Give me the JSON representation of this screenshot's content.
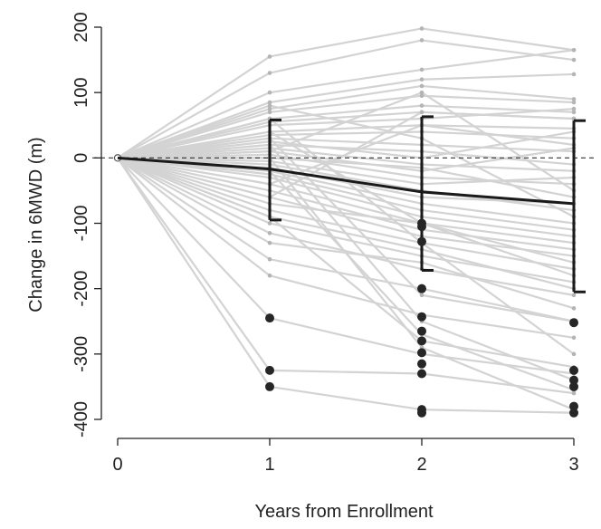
{
  "chart_data": {
    "type": "line",
    "title": "",
    "xlabel": "Years from Enrollment",
    "ylabel": "Change in 6MWD (m)",
    "x_ticks": [
      0,
      1,
      2,
      3
    ],
    "y_ticks": [
      200,
      100,
      0,
      -100,
      -200,
      -300,
      -400
    ],
    "xlim": [
      0,
      3
    ],
    "ylim": [
      -400,
      200
    ],
    "reference_line": {
      "y": 0,
      "style": "dashed"
    },
    "individual_trajectories": [
      [
        0,
        155,
        198,
        165
      ],
      [
        0,
        130,
        180,
        150
      ],
      [
        0,
        100,
        135,
        165
      ],
      [
        0,
        85,
        120,
        128
      ],
      [
        0,
        75,
        110,
        90
      ],
      [
        0,
        70,
        95,
        85
      ],
      [
        0,
        60,
        80,
        70
      ],
      [
        0,
        55,
        70,
        60
      ],
      [
        0,
        50,
        60,
        75
      ],
      [
        0,
        40,
        50,
        45
      ],
      [
        0,
        35,
        40,
        30
      ],
      [
        0,
        30,
        20,
        10
      ],
      [
        0,
        25,
        0,
        40
      ],
      [
        0,
        20,
        10,
        -10
      ],
      [
        0,
        15,
        -10,
        -20
      ],
      [
        0,
        10,
        -20,
        15
      ],
      [
        0,
        5,
        -30,
        -40
      ],
      [
        0,
        0,
        -15,
        -60
      ],
      [
        0,
        -5,
        -40,
        -30
      ],
      [
        0,
        -10,
        -50,
        -80
      ],
      [
        0,
        -15,
        -60,
        -70
      ],
      [
        0,
        -20,
        -70,
        -100
      ],
      [
        0,
        -25,
        -80,
        -110
      ],
      [
        0,
        -30,
        -90,
        -120
      ],
      [
        0,
        -40,
        -100,
        -130
      ],
      [
        0,
        -50,
        -110,
        -140
      ],
      [
        0,
        -60,
        -120,
        -150
      ],
      [
        0,
        -70,
        -100,
        -160
      ],
      [
        0,
        -80,
        -130,
        -170
      ],
      [
        0,
        -90,
        -140,
        -200
      ],
      [
        0,
        -100,
        -150,
        -190
      ],
      [
        0,
        -115,
        -170,
        -210
      ],
      [
        0,
        -130,
        -160,
        -230
      ],
      [
        0,
        -155,
        -200,
        -250
      ],
      [
        0,
        -180,
        -240,
        -275
      ],
      [
        0,
        -245,
        -300,
        -330
      ],
      [
        0,
        -325,
        -330,
        -360
      ],
      [
        0,
        -350,
        -385,
        -390
      ],
      [
        0,
        40,
        -100,
        -180
      ],
      [
        0,
        60,
        -130,
        -300
      ],
      [
        0,
        20,
        -250,
        -340
      ],
      [
        0,
        -20,
        -270,
        -355
      ],
      [
        0,
        0,
        -290,
        -385
      ],
      [
        0,
        10,
        100,
        -50
      ],
      [
        0,
        -40,
        50,
        20
      ],
      [
        0,
        80,
        30,
        -90
      ],
      [
        0,
        -60,
        70,
        60
      ],
      [
        0,
        30,
        -210,
        -250
      ],
      [
        0,
        -90,
        -280,
        -320
      ]
    ],
    "outliers": [
      {
        "x": 1,
        "y": -245
      },
      {
        "x": 1,
        "y": -325
      },
      {
        "x": 1,
        "y": -350
      },
      {
        "x": 2,
        "y": -100
      },
      {
        "x": 2,
        "y": -105
      },
      {
        "x": 2,
        "y": -128
      },
      {
        "x": 2,
        "y": -200
      },
      {
        "x": 2,
        "y": -243
      },
      {
        "x": 2,
        "y": -265
      },
      {
        "x": 2,
        "y": -280
      },
      {
        "x": 2,
        "y": -298
      },
      {
        "x": 2,
        "y": -315
      },
      {
        "x": 2,
        "y": -330
      },
      {
        "x": 2,
        "y": -385
      },
      {
        "x": 2,
        "y": -390
      },
      {
        "x": 3,
        "y": -252
      },
      {
        "x": 3,
        "y": -325
      },
      {
        "x": 3,
        "y": -340
      },
      {
        "x": 3,
        "y": -350
      },
      {
        "x": 3,
        "y": -380
      },
      {
        "x": 3,
        "y": -390
      }
    ],
    "mean_line": {
      "x": [
        0,
        1,
        2,
        3
      ],
      "y": [
        0,
        -17,
        -52,
        -70
      ]
    },
    "error_bars": [
      {
        "x": 1,
        "upper": 58,
        "lower": -95
      },
      {
        "x": 2,
        "upper": 63,
        "lower": -172
      },
      {
        "x": 3,
        "upper": 57,
        "lower": -205
      }
    ],
    "colors": {
      "trajectory": "#d3d3d3",
      "trajectory_point": "#b4b4b4",
      "mean": "#1a1a1a",
      "outlier": "#262626",
      "axis": "#222222"
    }
  }
}
